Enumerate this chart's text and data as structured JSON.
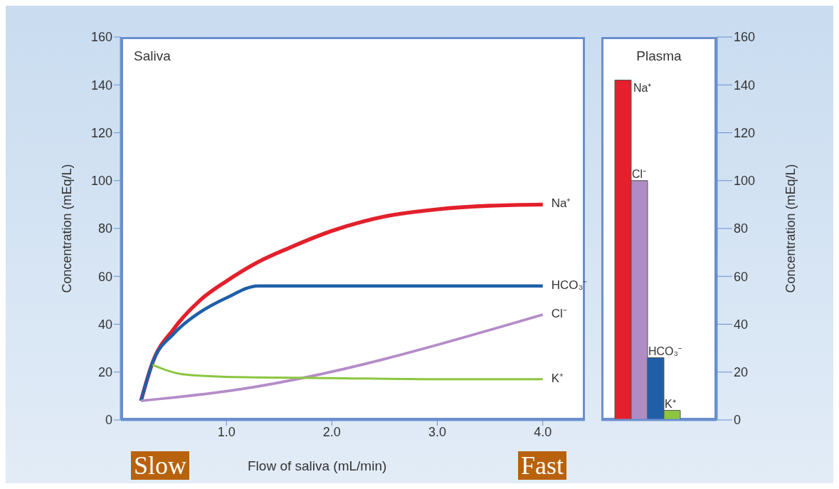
{
  "chart_data": [
    {
      "type": "line",
      "title": "Saliva",
      "xlabel": "Flow of saliva (mL/min)",
      "ylabel": "Concentration (mEq/L)",
      "xlim": [
        0,
        4.4
      ],
      "xticks": [
        {
          "value": 1,
          "label": "1.0"
        },
        {
          "value": 2,
          "label": "2.0"
        },
        {
          "value": 3,
          "label": "3.0"
        },
        {
          "value": 4,
          "label": "4.0"
        }
      ],
      "ylim": [
        0,
        160
      ],
      "yticks": [
        0,
        20,
        40,
        60,
        80,
        100,
        120,
        140,
        160
      ],
      "grid": false,
      "marker": "none",
      "annotations": [
        "Slow",
        "Fast"
      ],
      "series": [
        {
          "name": "Na⁺",
          "color": "#e3202b",
          "x": [
            0.19,
            0.3,
            0.5,
            0.75,
            1.0,
            1.3,
            1.6,
            2.0,
            2.5,
            3.0,
            3.5,
            4.0
          ],
          "values": [
            8,
            24,
            38,
            50,
            58,
            66,
            72,
            79,
            85,
            88,
            89.5,
            90
          ]
        },
        {
          "name": "HCO₃⁻",
          "color": "#1f5fa8",
          "x": [
            0.19,
            0.3,
            0.5,
            0.75,
            1.0,
            1.3,
            4.0
          ],
          "values": [
            8,
            24,
            36,
            45,
            51,
            56,
            56
          ]
        },
        {
          "name": "Cl⁻",
          "color": "#b48cc8",
          "x": [
            0.19,
            1.0,
            4.0
          ],
          "values": [
            8,
            12,
            44
          ]
        },
        {
          "name": "K⁺",
          "color": "#8cc63f",
          "x": [
            0.3,
            0.45,
            0.6,
            1.0,
            2.0,
            3.0,
            4.0
          ],
          "values": [
            23,
            20.5,
            19,
            18,
            17.5,
            17,
            17
          ]
        }
      ]
    },
    {
      "type": "bar",
      "title": "Plasma",
      "ylabel": "Concentration (mEq/L)",
      "ylim": [
        0,
        160
      ],
      "yticks": [
        0,
        20,
        40,
        60,
        80,
        100,
        120,
        140,
        160
      ],
      "grid": false,
      "tick_labels": "y",
      "categories": [
        null
      ],
      "series": [
        {
          "name": "Na⁺",
          "color": "#e3202b",
          "values": [
            142
          ]
        },
        {
          "name": "Cl⁻",
          "color": "#b08cc4",
          "values": [
            100
          ]
        },
        {
          "name": "HCO₃⁻",
          "color": "#1f5fa8",
          "values": [
            26
          ]
        },
        {
          "name": "K⁺",
          "color": "#8cc63f",
          "values": [
            4
          ]
        }
      ]
    }
  ]
}
